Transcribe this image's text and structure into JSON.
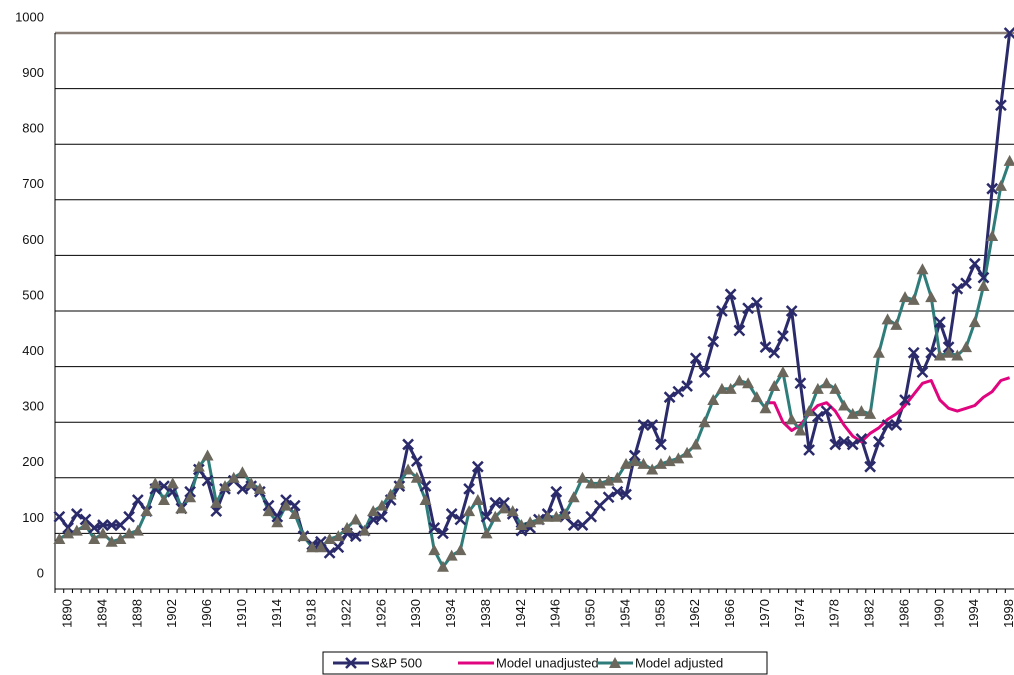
{
  "chart_data": {
    "type": "line",
    "categories": [
      null,
      "1890",
      null,
      null,
      null,
      "1894",
      null,
      null,
      null,
      "1898",
      null,
      null,
      null,
      "1902",
      null,
      null,
      null,
      "1906",
      null,
      null,
      null,
      "1910",
      null,
      null,
      null,
      "1914",
      null,
      null,
      null,
      "1918",
      null,
      null,
      null,
      "1922",
      null,
      null,
      null,
      "1926",
      null,
      null,
      null,
      "1930",
      null,
      null,
      null,
      "1934",
      null,
      null,
      null,
      "1938",
      null,
      null,
      null,
      "1942",
      null,
      null,
      null,
      "1946",
      null,
      null,
      null,
      "1950",
      null,
      null,
      null,
      "1954",
      null,
      null,
      null,
      "1958",
      null,
      null,
      null,
      "1962",
      null,
      null,
      null,
      "1966",
      null,
      null,
      null,
      "1970",
      null,
      null,
      null,
      "1974",
      null,
      null,
      null,
      "1978",
      null,
      null,
      null,
      "1982",
      null,
      null,
      null,
      "1986",
      null,
      null,
      null,
      "1990",
      null,
      null,
      null,
      "1994",
      null,
      null,
      null,
      "1998"
    ],
    "ylim": [
      0,
      1000
    ],
    "yticks": [
      0,
      100,
      200,
      300,
      400,
      500,
      600,
      700,
      800,
      900,
      1000
    ],
    "grid": true,
    "series": [
      {
        "name": "S&P 500",
        "color": "#2b2b6b",
        "marker": "x",
        "values": [
          130,
          110,
          135,
          125,
          110,
          115,
          115,
          115,
          130,
          160,
          140,
          180,
          185,
          175,
          145,
          175,
          215,
          195,
          140,
          180,
          195,
          180,
          185,
          175,
          150,
          130,
          160,
          150,
          95,
          80,
          85,
          65,
          75,
          100,
          95,
          105,
          125,
          130,
          160,
          185,
          260,
          230,
          185,
          110,
          100,
          135,
          125,
          180,
          220,
          130,
          155,
          155,
          135,
          105,
          110,
          125,
          135,
          175,
          130,
          115,
          115,
          130,
          150,
          165,
          175,
          170,
          240,
          295,
          295,
          260,
          345,
          355,
          365,
          415,
          390,
          445,
          500,
          530,
          465,
          505,
          515,
          435,
          425,
          455,
          500,
          370,
          250,
          310,
          320,
          260,
          265,
          260,
          270,
          220,
          265,
          295,
          295,
          340,
          425,
          390,
          425,
          480,
          435,
          540,
          550,
          585,
          560,
          720,
          870,
          1000
        ]
      },
      {
        "name": "Model unadjusted",
        "color": "#e0047f",
        "marker": "none",
        "values": [
          null,
          null,
          null,
          null,
          null,
          null,
          null,
          null,
          null,
          null,
          null,
          null,
          null,
          null,
          null,
          null,
          null,
          null,
          null,
          null,
          null,
          null,
          null,
          null,
          null,
          null,
          null,
          null,
          null,
          null,
          null,
          null,
          null,
          null,
          null,
          null,
          null,
          null,
          null,
          null,
          null,
          null,
          null,
          null,
          null,
          null,
          null,
          null,
          null,
          null,
          null,
          null,
          null,
          null,
          null,
          null,
          null,
          null,
          null,
          null,
          null,
          null,
          null,
          null,
          null,
          null,
          null,
          null,
          null,
          null,
          null,
          null,
          null,
          null,
          null,
          null,
          null,
          null,
          null,
          null,
          null,
          335,
          335,
          300,
          285,
          295,
          315,
          330,
          335,
          320,
          295,
          275,
          265,
          280,
          290,
          305,
          315,
          330,
          350,
          370,
          375,
          340,
          325,
          320,
          325,
          330,
          345,
          355,
          375,
          380
        ]
      },
      {
        "name": "Model adjusted",
        "color": "#2e7d7a",
        "marker": "triangle",
        "marker_color": "#6b675c",
        "values": [
          90,
          100,
          105,
          115,
          90,
          100,
          85,
          90,
          100,
          105,
          140,
          190,
          160,
          190,
          145,
          165,
          220,
          240,
          155,
          185,
          200,
          210,
          190,
          180,
          140,
          120,
          150,
          135,
          95,
          75,
          75,
          90,
          95,
          110,
          125,
          105,
          140,
          150,
          170,
          190,
          215,
          200,
          160,
          70,
          40,
          60,
          70,
          140,
          160,
          100,
          130,
          145,
          140,
          115,
          120,
          125,
          130,
          130,
          135,
          165,
          200,
          190,
          190,
          195,
          200,
          225,
          230,
          225,
          215,
          225,
          230,
          235,
          245,
          260,
          300,
          340,
          360,
          360,
          375,
          370,
          345,
          325,
          365,
          390,
          305,
          285,
          320,
          360,
          370,
          360,
          330,
          315,
          320,
          315,
          425,
          485,
          475,
          525,
          520,
          575,
          525,
          420,
          425,
          420,
          435,
          480,
          545,
          635,
          725,
          770
        ]
      }
    ]
  }
}
